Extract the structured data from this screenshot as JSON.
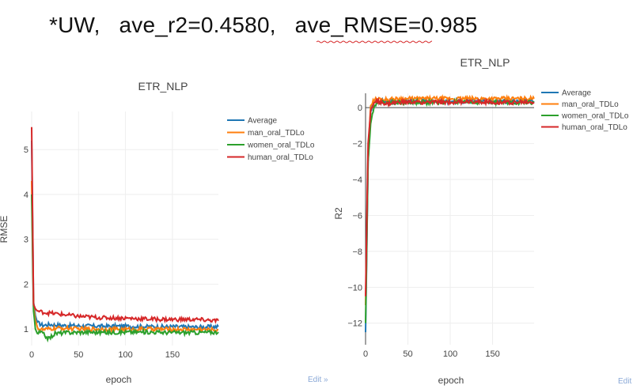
{
  "slide": {
    "title": "*UW,   ave_r2=0.4580,   ave_RMSE=0.985"
  },
  "edit_label": "Edit »",
  "chart_data": [
    {
      "type": "line",
      "title": "ETR_NLP",
      "xlabel": "epoch",
      "ylabel": "RMSE",
      "xlim": [
        0,
        199
      ],
      "ylim": [
        0.63,
        5.85
      ],
      "xticks": [
        0,
        50,
        100,
        150
      ],
      "yticks": [
        1,
        2,
        3,
        4,
        5
      ],
      "grid": true,
      "legend_position": "top-right",
      "colors": [
        "#1f77b4",
        "#ff7f0e",
        "#2ca02c",
        "#d62728"
      ],
      "series": [
        {
          "name": "Average",
          "points": [
            [
              0,
              5.2
            ],
            [
              2,
              1.6
            ],
            [
              4,
              1.3
            ],
            [
              6,
              1.15
            ],
            [
              8,
              1.12
            ],
            [
              12,
              1.08
            ],
            [
              20,
              1.1
            ],
            [
              30,
              1.08
            ],
            [
              50,
              1.07
            ],
            [
              75,
              1.06
            ],
            [
              100,
              1.06
            ],
            [
              125,
              1.05
            ],
            [
              150,
              1.05
            ],
            [
              175,
              1.04
            ],
            [
              199,
              1.05
            ]
          ]
        },
        {
          "name": "man_oral_TDLo",
          "points": [
            [
              0,
              4.3
            ],
            [
              2,
              1.5
            ],
            [
              4,
              1.2
            ],
            [
              6,
              1.05
            ],
            [
              8,
              1.0
            ],
            [
              12,
              0.98
            ],
            [
              20,
              1.0
            ],
            [
              30,
              1.02
            ],
            [
              50,
              1.0
            ],
            [
              75,
              1.0
            ],
            [
              100,
              0.99
            ],
            [
              125,
              1.0
            ],
            [
              150,
              0.99
            ],
            [
              175,
              0.99
            ],
            [
              199,
              0.98
            ]
          ]
        },
        {
          "name": "women_oral_TDLo",
          "points": [
            [
              0,
              4.0
            ],
            [
              2,
              1.4
            ],
            [
              4,
              1.0
            ],
            [
              6,
              0.9
            ],
            [
              10,
              0.93
            ],
            [
              18,
              0.78
            ],
            [
              25,
              0.9
            ],
            [
              40,
              0.92
            ],
            [
              60,
              0.93
            ],
            [
              80,
              0.92
            ],
            [
              100,
              0.93
            ],
            [
              125,
              0.93
            ],
            [
              150,
              0.92
            ],
            [
              175,
              0.92
            ],
            [
              199,
              0.93
            ]
          ]
        },
        {
          "name": "human_oral_TDLo",
          "points": [
            [
              0,
              5.5
            ],
            [
              2,
              1.55
            ],
            [
              4,
              1.45
            ],
            [
              6,
              1.4
            ],
            [
              10,
              1.38
            ],
            [
              20,
              1.35
            ],
            [
              30,
              1.33
            ],
            [
              50,
              1.28
            ],
            [
              75,
              1.25
            ],
            [
              100,
              1.24
            ],
            [
              125,
              1.22
            ],
            [
              150,
              1.21
            ],
            [
              175,
              1.21
            ],
            [
              199,
              1.18
            ]
          ]
        }
      ]
    },
    {
      "type": "line",
      "title": "ETR_NLP",
      "xlabel": "epoch",
      "ylabel": "R2",
      "xlim": [
        0,
        199
      ],
      "ylim": [
        -13.2,
        0.8
      ],
      "xticks": [
        0,
        50,
        100,
        150
      ],
      "yticks": [
        -12,
        -10,
        -8,
        -6,
        -4,
        -2,
        0
      ],
      "grid": true,
      "legend_position": "top-right",
      "colors": [
        "#1f77b4",
        "#ff7f0e",
        "#2ca02c",
        "#d62728"
      ],
      "series": [
        {
          "name": "Average",
          "points": [
            [
              0,
              -12.5
            ],
            [
              3,
              -3.0
            ],
            [
              6,
              -0.2
            ],
            [
              10,
              0.3
            ],
            [
              15,
              0.4
            ],
            [
              25,
              0.35
            ],
            [
              40,
              0.35
            ],
            [
              60,
              0.35
            ],
            [
              80,
              0.35
            ],
            [
              100,
              0.35
            ],
            [
              125,
              0.35
            ],
            [
              150,
              0.35
            ],
            [
              175,
              0.35
            ],
            [
              199,
              0.35
            ]
          ]
        },
        {
          "name": "man_oral_TDLo",
          "points": [
            [
              0,
              -11.0
            ],
            [
              3,
              -2.5
            ],
            [
              6,
              0.1
            ],
            [
              10,
              0.45
            ],
            [
              15,
              0.5
            ],
            [
              25,
              0.45
            ],
            [
              40,
              0.5
            ],
            [
              60,
              0.5
            ],
            [
              80,
              0.5
            ],
            [
              100,
              0.5
            ],
            [
              125,
              0.5
            ],
            [
              150,
              0.5
            ],
            [
              175,
              0.5
            ],
            [
              199,
              0.5
            ]
          ]
        },
        {
          "name": "women_oral_TDLo",
          "points": [
            [
              0,
              -12.0
            ],
            [
              3,
              -3.0
            ],
            [
              6,
              -0.9
            ],
            [
              10,
              0.1
            ],
            [
              15,
              0.3
            ],
            [
              25,
              0.3
            ],
            [
              40,
              0.3
            ],
            [
              60,
              0.3
            ],
            [
              80,
              0.3
            ],
            [
              100,
              0.3
            ],
            [
              125,
              0.3
            ],
            [
              150,
              0.3
            ],
            [
              175,
              0.3
            ],
            [
              199,
              0.3
            ]
          ]
        },
        {
          "name": "human_oral_TDLo",
          "points": [
            [
              0,
              -10.5
            ],
            [
              3,
              -2.0
            ],
            [
              6,
              -0.2
            ],
            [
              10,
              0.3
            ],
            [
              15,
              0.35
            ],
            [
              25,
              0.2
            ],
            [
              40,
              0.3
            ],
            [
              60,
              0.3
            ],
            [
              80,
              0.3
            ],
            [
              100,
              0.3
            ],
            [
              125,
              0.35
            ],
            [
              150,
              0.3
            ],
            [
              175,
              0.3
            ],
            [
              199,
              0.3
            ]
          ]
        }
      ]
    }
  ]
}
